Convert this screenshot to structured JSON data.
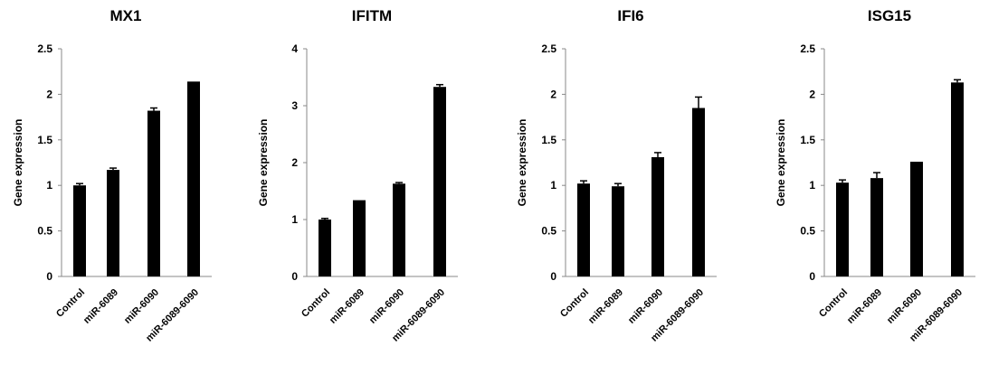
{
  "chart_data": [
    {
      "type": "bar",
      "title": "MX1",
      "ylabel": "Gene expression",
      "xlabel": "",
      "categories": [
        "Control",
        "miR-6089",
        "miR-6090",
        "miR-6089-6090"
      ],
      "values": [
        1.0,
        1.17,
        1.82,
        2.14
      ],
      "errors": [
        0.02,
        0.02,
        0.03,
        0.0
      ],
      "ylim": [
        0,
        2.5
      ],
      "yticks": [
        0,
        0.5,
        1,
        1.5,
        2,
        2.5
      ],
      "ytick_labels": [
        "0",
        "0.5",
        "1",
        "1.5",
        "2",
        "2.5"
      ],
      "grid": false,
      "color": "#000000"
    },
    {
      "type": "bar",
      "title": "IFITM",
      "ylabel": "Gene expression",
      "xlabel": "",
      "categories": [
        "Control",
        "miR-6089",
        "miR-6090",
        "miR-6089-6090"
      ],
      "values": [
        1.0,
        1.34,
        1.63,
        3.33
      ],
      "errors": [
        0.02,
        0.0,
        0.02,
        0.04
      ],
      "ylim": [
        0,
        4
      ],
      "yticks": [
        0,
        1,
        2,
        3,
        4
      ],
      "ytick_labels": [
        "0",
        "1",
        "2",
        "3",
        "4"
      ],
      "grid": false,
      "color": "#000000"
    },
    {
      "type": "bar",
      "title": "IFI6",
      "ylabel": "Gene expression",
      "xlabel": "",
      "categories": [
        "Control",
        "miR-6089",
        "miR-6090",
        "miR-6089-6090"
      ],
      "values": [
        1.02,
        0.99,
        1.31,
        1.85
      ],
      "errors": [
        0.03,
        0.03,
        0.05,
        0.12
      ],
      "ylim": [
        0,
        2.5
      ],
      "yticks": [
        0,
        0.5,
        1,
        1.5,
        2,
        2.5
      ],
      "ytick_labels": [
        "0",
        "0.5",
        "1",
        "1.5",
        "2",
        "2.5"
      ],
      "grid": false,
      "color": "#000000"
    },
    {
      "type": "bar",
      "title": "ISG15",
      "ylabel": "Gene expression",
      "xlabel": "",
      "categories": [
        "Control",
        "miR-6089",
        "miR-6090",
        "miR-6089-6090"
      ],
      "values": [
        1.03,
        1.08,
        1.26,
        2.13
      ],
      "errors": [
        0.03,
        0.06,
        0.0,
        0.03
      ],
      "ylim": [
        0,
        2.5
      ],
      "yticks": [
        0,
        0.5,
        1,
        1.5,
        2,
        2.5
      ],
      "ytick_labels": [
        "0",
        "0.5",
        "1",
        "1.5",
        "2",
        "2.5"
      ],
      "grid": false,
      "color": "#000000"
    }
  ]
}
